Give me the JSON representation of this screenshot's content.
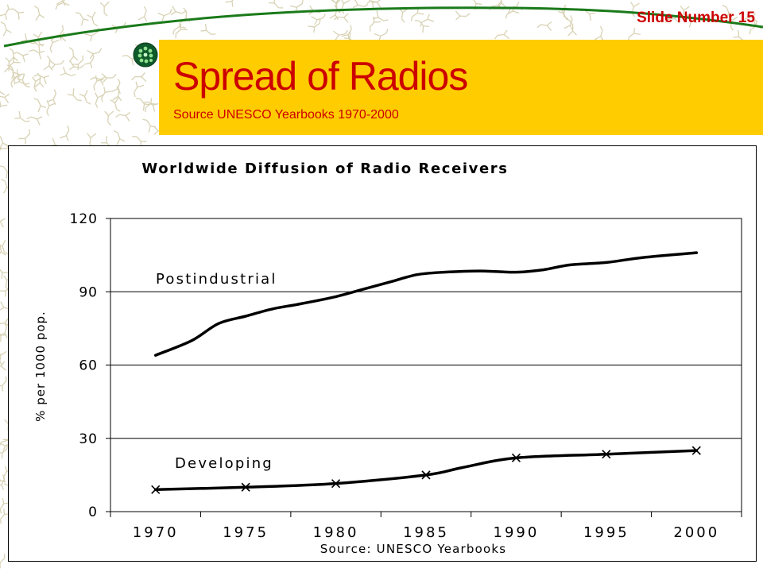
{
  "slide": {
    "number_label": "Slide Number 15",
    "title": "Spread of Radios",
    "subtitle": "Source UNESCO Yearbooks 1970-2000",
    "colors": {
      "band": "#ffcc00",
      "title": "#cc0000",
      "pattern": "#d8d2b4"
    }
  },
  "chart_data": {
    "type": "line",
    "title": "Worldwide Diffusion of  Radio Receivers",
    "xlabel": "Source: UNESCO Yearbooks",
    "ylabel": "% per 1000 pop.",
    "categories": [
      "1970",
      "1975",
      "1980",
      "1985",
      "1990",
      "1995",
      "2000"
    ],
    "ylim": [
      0,
      120
    ],
    "yticks": [
      0,
      30,
      60,
      90,
      120
    ],
    "grid": "horizontal",
    "series": [
      {
        "name": "Postindustrial",
        "x": [
          1970,
          1972,
          1973.5,
          1975,
          1976.5,
          1978,
          1980,
          1981.5,
          1983,
          1984.5,
          1986,
          1988,
          1990,
          1991.5,
          1993,
          1995,
          1997,
          2000
        ],
        "values": [
          64,
          70,
          77,
          80,
          83,
          85,
          88,
          91,
          94,
          97,
          98,
          98.5,
          98,
          99,
          101,
          102,
          104,
          106
        ],
        "marker": "none"
      },
      {
        "name": "Developing",
        "x": [
          1970,
          1975,
          1980,
          1985,
          1987,
          1990,
          1995,
          2000
        ],
        "values": [
          9,
          10,
          11.5,
          15,
          18,
          22,
          23.5,
          25
        ],
        "marker": "x",
        "marker_x": [
          1970,
          1975,
          1980,
          1985,
          1990,
          1995,
          2000
        ],
        "marker_values": [
          9,
          10,
          11.5,
          15,
          22,
          23.5,
          25
        ]
      }
    ]
  }
}
